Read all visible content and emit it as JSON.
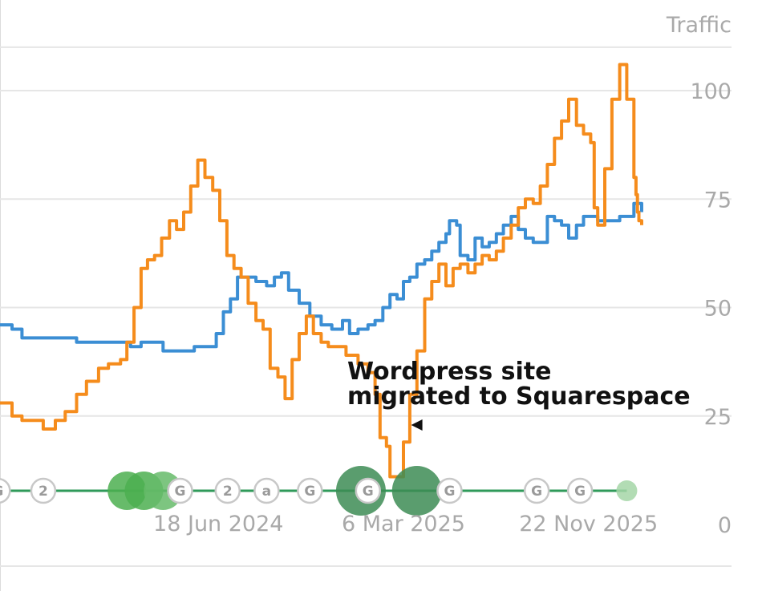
{
  "chart_data": {
    "type": "line",
    "ylabel": "Traffic",
    "ylim": [
      0,
      110
    ],
    "y_ticks": [
      0,
      25,
      50,
      75,
      100
    ],
    "y_tick_labels": [
      "0",
      "25",
      "50",
      "75",
      "100"
    ],
    "xlim": [
      "2023-08-15",
      "2026-02-05"
    ],
    "x_ticks": [
      {
        "date": "2024-06-18",
        "label": "18 Jun 2024"
      },
      {
        "date": "2025-03-06",
        "label": "6 Mar 2025"
      },
      {
        "date": "2025-11-22",
        "label": "22 Nov 2025"
      }
    ],
    "grid": true,
    "series": [
      {
        "color": "#3b8ed4",
        "points": [
          [
            "2023-08-15",
            46
          ],
          [
            "2023-09-01",
            45
          ],
          [
            "2023-09-15",
            43
          ],
          [
            "2023-10-01",
            43
          ],
          [
            "2023-11-01",
            43
          ],
          [
            "2023-12-01",
            42
          ],
          [
            "2024-01-01",
            42
          ],
          [
            "2024-02-01",
            42
          ],
          [
            "2024-02-15",
            41
          ],
          [
            "2024-03-01",
            42
          ],
          [
            "2024-04-01",
            40
          ],
          [
            "2024-05-01",
            40
          ],
          [
            "2024-05-15",
            41
          ],
          [
            "2024-06-01",
            41
          ],
          [
            "2024-06-15",
            44
          ],
          [
            "2024-06-25",
            49
          ],
          [
            "2024-07-05",
            52
          ],
          [
            "2024-07-15",
            57
          ],
          [
            "2024-07-25",
            57
          ],
          [
            "2024-08-10",
            56
          ],
          [
            "2024-08-25",
            55
          ],
          [
            "2024-09-05",
            57
          ],
          [
            "2024-09-15",
            58
          ],
          [
            "2024-09-25",
            54
          ],
          [
            "2024-10-10",
            51
          ],
          [
            "2024-10-25",
            48
          ],
          [
            "2024-11-10",
            46
          ],
          [
            "2024-11-25",
            45
          ],
          [
            "2024-12-10",
            47
          ],
          [
            "2024-12-20",
            44
          ],
          [
            "2025-01-01",
            45
          ],
          [
            "2025-01-15",
            46
          ],
          [
            "2025-01-25",
            47
          ],
          [
            "2025-02-05",
            50
          ],
          [
            "2025-02-15",
            53
          ],
          [
            "2025-02-25",
            52
          ],
          [
            "2025-03-06",
            56
          ],
          [
            "2025-03-15",
            57
          ],
          [
            "2025-03-25",
            60
          ],
          [
            "2025-04-05",
            61
          ],
          [
            "2025-04-15",
            63
          ],
          [
            "2025-04-25",
            65
          ],
          [
            "2025-05-05",
            67
          ],
          [
            "2025-05-10",
            70
          ],
          [
            "2025-05-20",
            69
          ],
          [
            "2025-05-25",
            62
          ],
          [
            "2025-06-05",
            61
          ],
          [
            "2025-06-15",
            66
          ],
          [
            "2025-06-25",
            64
          ],
          [
            "2025-07-05",
            65
          ],
          [
            "2025-07-15",
            67
          ],
          [
            "2025-07-25",
            69
          ],
          [
            "2025-08-05",
            71
          ],
          [
            "2025-08-15",
            68
          ],
          [
            "2025-08-25",
            66
          ],
          [
            "2025-09-05",
            65
          ],
          [
            "2025-09-15",
            65
          ],
          [
            "2025-09-25",
            71
          ],
          [
            "2025-10-05",
            70
          ],
          [
            "2025-10-15",
            69
          ],
          [
            "2025-10-25",
            66
          ],
          [
            "2025-11-05",
            69
          ],
          [
            "2025-11-15",
            71
          ],
          [
            "2025-11-25",
            71
          ],
          [
            "2025-12-05",
            70
          ],
          [
            "2025-12-15",
            70
          ],
          [
            "2025-12-25",
            70
          ],
          [
            "2026-01-05",
            71
          ],
          [
            "2026-01-15",
            71
          ],
          [
            "2026-01-25",
            74
          ],
          [
            "2026-02-01",
            74
          ],
          [
            "2026-02-05",
            72
          ]
        ]
      },
      {
        "color": "#f58c1c",
        "points": [
          [
            "2023-08-15",
            28
          ],
          [
            "2023-09-01",
            25
          ],
          [
            "2023-09-15",
            24
          ],
          [
            "2023-10-01",
            24
          ],
          [
            "2023-10-15",
            22
          ],
          [
            "2023-11-01",
            24
          ],
          [
            "2023-11-15",
            26
          ],
          [
            "2023-12-01",
            30
          ],
          [
            "2023-12-15",
            33
          ],
          [
            "2024-01-01",
            36
          ],
          [
            "2024-01-15",
            37
          ],
          [
            "2024-02-01",
            38
          ],
          [
            "2024-02-10",
            42
          ],
          [
            "2024-02-20",
            50
          ],
          [
            "2024-03-01",
            59
          ],
          [
            "2024-03-10",
            61
          ],
          [
            "2024-03-20",
            62
          ],
          [
            "2024-03-30",
            66
          ],
          [
            "2024-04-10",
            70
          ],
          [
            "2024-04-20",
            68
          ],
          [
            "2024-04-30",
            72
          ],
          [
            "2024-05-10",
            78
          ],
          [
            "2024-05-20",
            84
          ],
          [
            "2024-05-30",
            80
          ],
          [
            "2024-06-10",
            77
          ],
          [
            "2024-06-20",
            70
          ],
          [
            "2024-06-30",
            62
          ],
          [
            "2024-07-10",
            59
          ],
          [
            "2024-07-20",
            57
          ],
          [
            "2024-07-30",
            51
          ],
          [
            "2024-08-10",
            47
          ],
          [
            "2024-08-20",
            45
          ],
          [
            "2024-08-30",
            36
          ],
          [
            "2024-09-10",
            34
          ],
          [
            "2024-09-20",
            29
          ],
          [
            "2024-09-30",
            38
          ],
          [
            "2024-10-10",
            44
          ],
          [
            "2024-10-20",
            48
          ],
          [
            "2024-10-30",
            44
          ],
          [
            "2024-11-10",
            42
          ],
          [
            "2024-11-20",
            41
          ],
          [
            "2024-12-01",
            41
          ],
          [
            "2024-12-15",
            39
          ],
          [
            "2025-01-01",
            37
          ],
          [
            "2025-01-15",
            35
          ],
          [
            "2025-01-25",
            30
          ],
          [
            "2025-02-01",
            20
          ],
          [
            "2025-02-10",
            18
          ],
          [
            "2025-02-15",
            11
          ],
          [
            "2025-02-25",
            11
          ],
          [
            "2025-03-06",
            19
          ],
          [
            "2025-03-15",
            30
          ],
          [
            "2025-03-25",
            40
          ],
          [
            "2025-04-05",
            52
          ],
          [
            "2025-04-15",
            56
          ],
          [
            "2025-04-25",
            60
          ],
          [
            "2025-05-05",
            55
          ],
          [
            "2025-05-15",
            59
          ],
          [
            "2025-05-25",
            60
          ],
          [
            "2025-06-05",
            58
          ],
          [
            "2025-06-15",
            60
          ],
          [
            "2025-06-25",
            62
          ],
          [
            "2025-07-05",
            61
          ],
          [
            "2025-07-15",
            63
          ],
          [
            "2025-07-25",
            66
          ],
          [
            "2025-08-05",
            69
          ],
          [
            "2025-08-15",
            73
          ],
          [
            "2025-08-25",
            75
          ],
          [
            "2025-09-05",
            74
          ],
          [
            "2025-09-15",
            78
          ],
          [
            "2025-09-25",
            83
          ],
          [
            "2025-10-05",
            89
          ],
          [
            "2025-10-15",
            93
          ],
          [
            "2025-10-25",
            98
          ],
          [
            "2025-11-05",
            92
          ],
          [
            "2025-11-15",
            90
          ],
          [
            "2025-11-25",
            88
          ],
          [
            "2025-11-30",
            73
          ],
          [
            "2025-12-05",
            69
          ],
          [
            "2025-12-15",
            82
          ],
          [
            "2025-12-25",
            98
          ],
          [
            "2026-01-05",
            106
          ],
          [
            "2026-01-15",
            98
          ],
          [
            "2026-01-25",
            80
          ],
          [
            "2026-01-28",
            76
          ],
          [
            "2026-01-30",
            72
          ],
          [
            "2026-02-01",
            70
          ],
          [
            "2026-02-05",
            69
          ]
        ]
      }
    ],
    "annotations": [
      {
        "text_lines": [
          "Wordpress site",
          "migrated to Squarespace"
        ],
        "arrow_to": "2025-02-20"
      }
    ],
    "event_markers": [
      {
        "date": "2023-08-12",
        "kind": "label",
        "label": "G"
      },
      {
        "date": "2023-10-15",
        "kind": "label",
        "label": "2"
      },
      {
        "date": "2024-02-10",
        "kind": "dot",
        "size": "medium",
        "color": "#4caf50"
      },
      {
        "date": "2024-03-05",
        "kind": "dot",
        "size": "medium",
        "color": "#4caf50"
      },
      {
        "date": "2024-04-01",
        "kind": "dot",
        "size": "medium",
        "color": "#66bb6a"
      },
      {
        "date": "2024-04-25",
        "kind": "label",
        "label": "G"
      },
      {
        "date": "2024-07-01",
        "kind": "label",
        "label": "2"
      },
      {
        "date": "2024-08-25",
        "kind": "label",
        "label": "a"
      },
      {
        "date": "2024-10-25",
        "kind": "label",
        "label": "G"
      },
      {
        "date": "2025-01-05",
        "kind": "dot",
        "size": "large",
        "color": "#3d8c55"
      },
      {
        "date": "2025-01-15",
        "kind": "label",
        "label": "G"
      },
      {
        "date": "2025-03-25",
        "kind": "dot",
        "size": "large",
        "color": "#3d8c55"
      },
      {
        "date": "2025-05-10",
        "kind": "label",
        "label": "G"
      },
      {
        "date": "2025-09-10",
        "kind": "label",
        "label": "G"
      },
      {
        "date": "2025-11-10",
        "kind": "label",
        "label": "G"
      },
      {
        "date": "2026-01-15",
        "kind": "dot",
        "size": "small",
        "color": "#a5d6a7"
      }
    ]
  }
}
